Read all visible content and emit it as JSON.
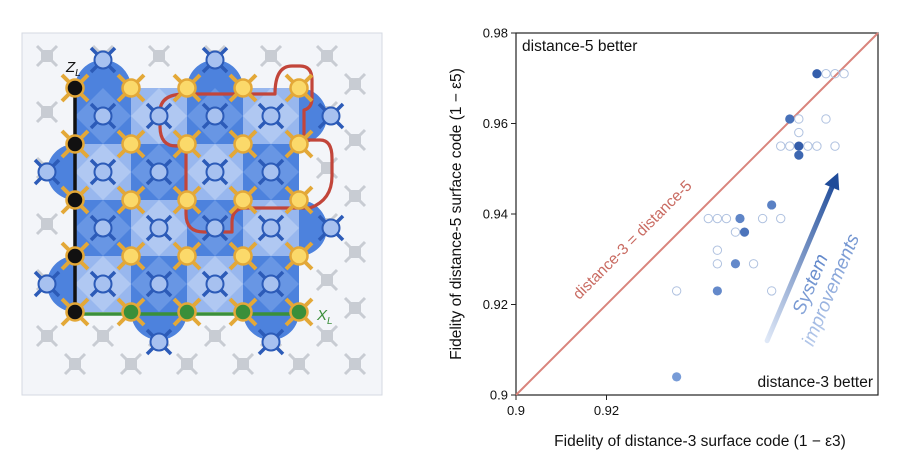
{
  "left_panel": {
    "z_label": "Z",
    "z_sub": "L",
    "x_label": "X",
    "x_sub": "L"
  },
  "chart_data": {
    "type": "scatter",
    "title": "",
    "xlabel": "Fidelity of distance-3 surface code (1 − ε3)",
    "ylabel": "Fidelity of distance-5 surface code (1 − ε5)",
    "xlim": [
      0.9,
      0.98
    ],
    "ylim": [
      0.9,
      0.98
    ],
    "xticks": [
      "0.9",
      "0.92"
    ],
    "yticks": [
      "0.9",
      "0.92",
      "0.94",
      "0.96",
      "0.98"
    ],
    "grid": false,
    "annotations": {
      "top_left": "distance-5 better",
      "bottom_right": "distance-3 better",
      "diagonal": "distance-3 = distance-5",
      "arrow_line1": "System",
      "arrow_line2": "improvements"
    },
    "colors": {
      "diagonal": "#d9847c",
      "filled_point": "#2f5aa8",
      "light_point": "#8fb0e6",
      "open_point": "#b0c2e0",
      "arrow_dark": "#1f4b99",
      "arrow_light": "#c9d8f2"
    },
    "series": [
      {
        "style": "filled",
        "points": [
          {
            "x": 0.9355,
            "y": 0.904,
            "shade": 0.25
          },
          {
            "x": 0.9445,
            "y": 0.923,
            "shade": 0.45
          },
          {
            "x": 0.9485,
            "y": 0.929,
            "shade": 0.45
          },
          {
            "x": 0.9495,
            "y": 0.939,
            "shade": 0.5
          },
          {
            "x": 0.9505,
            "y": 0.936,
            "shade": 0.7
          },
          {
            "x": 0.9565,
            "y": 0.942,
            "shade": 0.55
          },
          {
            "x": 0.9605,
            "y": 0.961,
            "shade": 0.75
          },
          {
            "x": 0.9625,
            "y": 0.953,
            "shade": 0.85
          },
          {
            "x": 0.9625,
            "y": 0.955,
            "shade": 0.95
          },
          {
            "x": 0.9665,
            "y": 0.971,
            "shade": 0.95
          }
        ]
      },
      {
        "style": "open",
        "points": [
          {
            "x": 0.9355,
            "y": 0.923
          },
          {
            "x": 0.9425,
            "y": 0.939
          },
          {
            "x": 0.9445,
            "y": 0.939
          },
          {
            "x": 0.9445,
            "y": 0.929
          },
          {
            "x": 0.9445,
            "y": 0.932
          },
          {
            "x": 0.9465,
            "y": 0.939
          },
          {
            "x": 0.9485,
            "y": 0.936
          },
          {
            "x": 0.9525,
            "y": 0.929
          },
          {
            "x": 0.9545,
            "y": 0.939
          },
          {
            "x": 0.9565,
            "y": 0.923
          },
          {
            "x": 0.9585,
            "y": 0.939
          },
          {
            "x": 0.9585,
            "y": 0.955
          },
          {
            "x": 0.9605,
            "y": 0.955
          },
          {
            "x": 0.9625,
            "y": 0.958
          },
          {
            "x": 0.9625,
            "y": 0.961
          },
          {
            "x": 0.9645,
            "y": 0.955
          },
          {
            "x": 0.9665,
            "y": 0.955
          },
          {
            "x": 0.9685,
            "y": 0.961
          },
          {
            "x": 0.9705,
            "y": 0.955
          },
          {
            "x": 0.9685,
            "y": 0.971
          },
          {
            "x": 0.9725,
            "y": 0.971
          },
          {
            "x": 0.9705,
            "y": 0.971
          }
        ]
      }
    ]
  }
}
